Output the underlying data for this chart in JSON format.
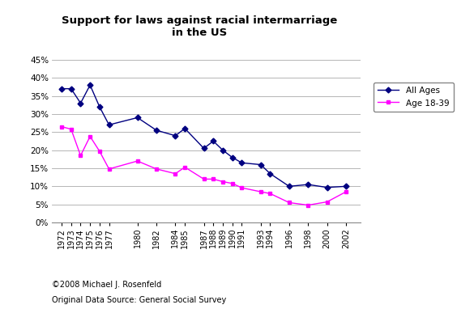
{
  "title": "Support for laws against racial intermarriage\nin the US",
  "all_ages": {
    "years": [
      1972,
      1973,
      1974,
      1975,
      1976,
      1977,
      1980,
      1982,
      1984,
      1985,
      1987,
      1988,
      1989,
      1990,
      1991,
      1993,
      1994,
      1996,
      1998,
      2000,
      2002
    ],
    "values": [
      0.37,
      0.37,
      0.33,
      0.38,
      0.32,
      0.27,
      0.29,
      0.255,
      0.24,
      0.26,
      0.205,
      0.225,
      0.2,
      0.18,
      0.165,
      0.16,
      0.135,
      0.1,
      0.105,
      0.097,
      0.1
    ],
    "color": "#000080",
    "label": "All Ages",
    "marker": "D"
  },
  "age_18_39": {
    "years": [
      1972,
      1973,
      1974,
      1975,
      1976,
      1977,
      1980,
      1982,
      1984,
      1985,
      1987,
      1988,
      1989,
      1990,
      1991,
      1993,
      1994,
      1996,
      1998,
      2000,
      2002
    ],
    "values": [
      0.265,
      0.258,
      0.185,
      0.238,
      0.197,
      0.148,
      0.17,
      0.148,
      0.135,
      0.153,
      0.12,
      0.12,
      0.113,
      0.108,
      0.096,
      0.085,
      0.08,
      0.055,
      0.048,
      0.057,
      0.085
    ],
    "color": "#FF00FF",
    "label": "Age 18-39",
    "marker": "s"
  },
  "yticks": [
    0.0,
    0.05,
    0.1,
    0.15,
    0.2,
    0.25,
    0.3,
    0.35,
    0.4,
    0.45
  ],
  "ylim": [
    0.0,
    0.47
  ],
  "xtick_labels": [
    "1972",
    "1973",
    "1974",
    "1975",
    "1976",
    "1977",
    "1980",
    "1982",
    "1984",
    "1985",
    "1987",
    "1988",
    "1989",
    "1990",
    "1991",
    "1993",
    "1994",
    "1996",
    "1998",
    "2000",
    "2002"
  ],
  "footnote1": "©2008 Michael J. Rosenfeld",
  "footnote2": "Original Data Source: General Social Survey",
  "background_color": "#ffffff",
  "grid_color": "#aaaaaa"
}
